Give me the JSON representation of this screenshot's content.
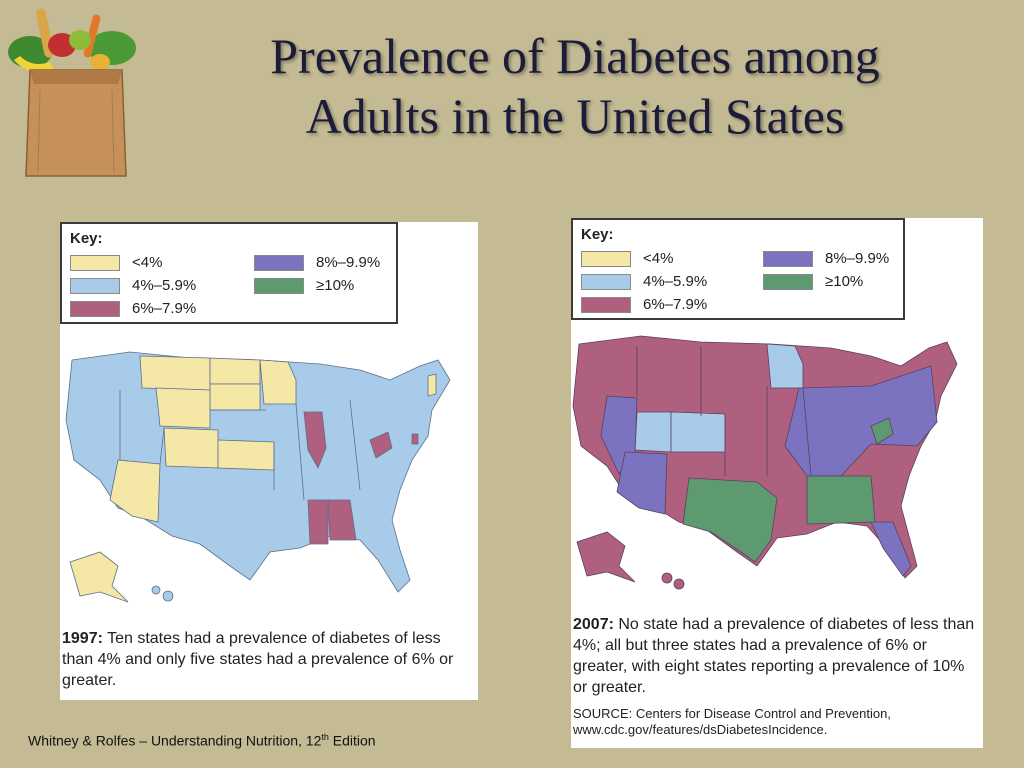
{
  "slide": {
    "title_line1": "Prevalence of Diabetes among",
    "title_line2": "Adults in the United States",
    "citation_main": "Whitney  & Rolfes – Understanding Nutrition, 12",
    "citation_sup": "th",
    "citation_end": "  Edition"
  },
  "key": {
    "label": "Key:",
    "items": [
      {
        "label": "<4%",
        "color": "#f5e7a6"
      },
      {
        "label": "4%–5.9%",
        "color": "#a9cbea"
      },
      {
        "label": "6%–7.9%",
        "color": "#b0607f"
      },
      {
        "label": "8%–9.9%",
        "color": "#7b72c0"
      },
      {
        "label": "≥10%",
        "color": "#5e9a6f"
      }
    ]
  },
  "maps": [
    {
      "year": "1997:",
      "caption": " Ten states had a prevalence of diabetes of less than 4% and only five states had a prevalence of 6% or greater."
    },
    {
      "year": "2007:",
      "caption": " No state had a prevalence of diabetes of less than 4%; all but three states had a prevalence of 6% or greater, with eight states reporting a prevalence of 10% or greater.",
      "source": "SOURCE: Centers for Disease Control and Prevention, www.cdc.gov/features/dsDiabetesIncidence."
    }
  ]
}
